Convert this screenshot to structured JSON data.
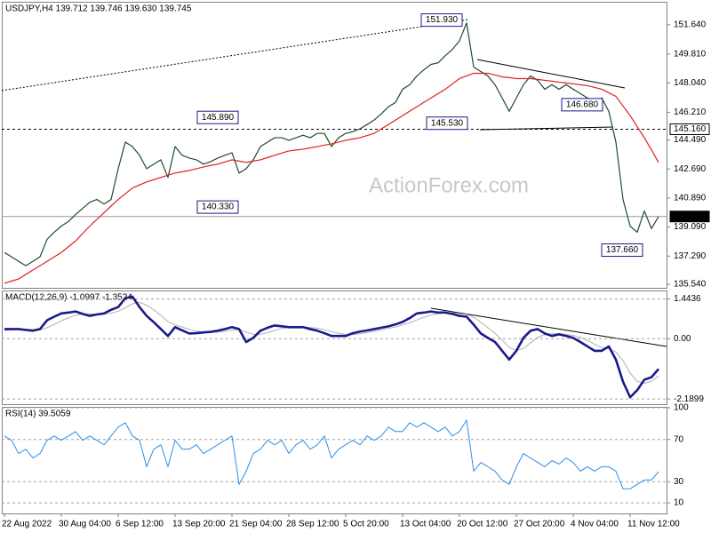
{
  "chart_data": [
    {
      "type": "line",
      "title": "USDJPY,H4  139.712 139.746 139.630 139.745",
      "watermark": "ActionForex.com",
      "ylim": [
        135.32,
        153.01
      ],
      "yticks": [
        {
          "value": 151.64,
          "label": "151.640"
        },
        {
          "value": 149.81,
          "label": "149.810"
        },
        {
          "value": 148.04,
          "label": "148.040"
        },
        {
          "value": 146.21,
          "label": "146.210"
        },
        {
          "value": 144.49,
          "label": "144.490"
        },
        {
          "value": 142.69,
          "label": "142.690"
        },
        {
          "value": 140.89,
          "label": "140.890"
        },
        {
          "value": 139.09,
          "label": "139.090"
        },
        {
          "value": 137.29,
          "label": "137.290"
        },
        {
          "value": 135.54,
          "label": "135.540"
        }
      ],
      "levels": [
        {
          "value": 145.16,
          "label": "145.160"
        },
        {
          "value": 139.745,
          "label": "139.745"
        }
      ],
      "annotations": [
        {
          "value": 151.93,
          "label": "151.930"
        },
        {
          "value": 145.89,
          "label": "145.890"
        },
        {
          "value": 140.33,
          "label": "140.330"
        },
        {
          "value": 145.53,
          "label": "145.530"
        },
        {
          "value": 146.68,
          "label": "146.680"
        },
        {
          "value": 137.66,
          "label": "137.660"
        }
      ],
      "grid": false,
      "series": [
        {
          "color": "#1e4d2b",
          "width": 1.2,
          "values": [
            137.51,
            137.24,
            136.96,
            136.69,
            136.96,
            137.24,
            138.33,
            138.77,
            139.15,
            139.43,
            139.87,
            140.25,
            140.63,
            140.8,
            140.52,
            140.8,
            142.71,
            144.36,
            144.08,
            143.54,
            142.71,
            142.99,
            143.26,
            142.17,
            144.08,
            143.54,
            143.37,
            143.26,
            142.99,
            143.15,
            143.37,
            143.54,
            143.7,
            142.44,
            142.71,
            143.26,
            144.08,
            144.36,
            144.63,
            144.63,
            144.47,
            144.63,
            144.79,
            144.63,
            144.9,
            144.9,
            144.08,
            144.63,
            144.9,
            145.01,
            145.18,
            145.45,
            145.73,
            146.11,
            146.55,
            146.82,
            147.64,
            147.92,
            148.46,
            148.85,
            149.18,
            149.28,
            149.72,
            150.11,
            150.65,
            151.75,
            149.01,
            148.74,
            148.46,
            147.92,
            147.1,
            146.27,
            147.1,
            147.92,
            148.46,
            148.19,
            147.64,
            147.92,
            147.64,
            147.92,
            147.64,
            147.37,
            147.1,
            146.82,
            147.1,
            146.27,
            144.36,
            140.8,
            139.15,
            138.77,
            140.09,
            138.99,
            139.745
          ]
        },
        {
          "color": "#e02020",
          "width": 1.2,
          "values": [
            135.6,
            135.74,
            135.87,
            136.15,
            136.42,
            136.69,
            136.96,
            137.24,
            137.51,
            137.87,
            138.22,
            138.69,
            139.15,
            139.57,
            139.98,
            140.39,
            140.8,
            141.16,
            141.51,
            141.7,
            141.89,
            142.03,
            142.17,
            142.31,
            142.44,
            142.52,
            142.6,
            142.71,
            142.82,
            142.91,
            142.99,
            143.13,
            143.26,
            143.18,
            143.1,
            143.18,
            143.26,
            143.4,
            143.54,
            143.68,
            143.81,
            143.87,
            143.92,
            144.0,
            144.08,
            144.17,
            144.25,
            144.36,
            144.47,
            144.55,
            144.63,
            144.77,
            144.9,
            145.18,
            145.45,
            145.73,
            146.0,
            146.28,
            146.55,
            146.83,
            147.1,
            147.37,
            147.64,
            147.97,
            148.3,
            148.47,
            148.63,
            148.63,
            148.63,
            148.52,
            148.41,
            148.36,
            148.3,
            148.3,
            148.3,
            148.25,
            148.19,
            148.14,
            148.08,
            148.03,
            147.97,
            147.92,
            147.86,
            147.75,
            147.64,
            147.42,
            147.2,
            146.6,
            146.0,
            145.32,
            144.63,
            143.87,
            143.1
          ]
        }
      ]
    },
    {
      "type": "line",
      "title": "MACD(12,26,9) -1.0997 -1.3524",
      "ylim": [
        -2.38,
        1.72
      ],
      "yticks": [
        1.4436,
        {
          "value": 0,
          "label": "0.00"
        },
        -2.1899
      ],
      "grid": true,
      "series": [
        {
          "color": "#b0b0b0",
          "width": 1,
          "values": [
            0.3,
            0.32,
            0.33,
            0.34,
            0.33,
            0.32,
            0.4,
            0.52,
            0.65,
            0.76,
            0.85,
            0.9,
            0.9,
            0.89,
            0.89,
            0.93,
            1.0,
            1.12,
            1.27,
            1.32,
            1.22,
            1.05,
            0.85,
            0.62,
            0.5,
            0.42,
            0.34,
            0.28,
            0.24,
            0.23,
            0.24,
            0.27,
            0.31,
            0.34,
            0.24,
            0.16,
            0.16,
            0.22,
            0.3,
            0.37,
            0.41,
            0.42,
            0.43,
            0.41,
            0.38,
            0.33,
            0.26,
            0.2,
            0.15,
            0.15,
            0.18,
            0.22,
            0.27,
            0.32,
            0.37,
            0.43,
            0.5,
            0.58,
            0.68,
            0.78,
            0.86,
            0.91,
            0.94,
            0.94,
            0.91,
            0.88,
            0.78,
            0.6,
            0.4,
            0.2,
            -0.05,
            -0.32,
            -0.43,
            -0.35,
            -0.15,
            0.05,
            0.15,
            0.18,
            0.18,
            0.15,
            0.12,
            0.05,
            -0.06,
            -0.2,
            -0.32,
            -0.37,
            -0.48,
            -0.8,
            -1.25,
            -1.55,
            -1.62,
            -1.55,
            -1.3524
          ]
        },
        {
          "color": "#1a1a8a",
          "width": 2.6,
          "values": [
            0.35,
            0.35,
            0.35,
            0.32,
            0.29,
            0.35,
            0.67,
            0.8,
            0.92,
            0.95,
            0.99,
            0.9,
            0.83,
            0.88,
            0.92,
            1.05,
            1.15,
            1.47,
            1.53,
            1.15,
            0.83,
            0.6,
            0.35,
            0.1,
            0.42,
            0.3,
            0.19,
            0.2,
            0.23,
            0.25,
            0.29,
            0.35,
            0.42,
            0.35,
            -0.12,
            0.03,
            0.29,
            0.4,
            0.48,
            0.45,
            0.42,
            0.42,
            0.42,
            0.35,
            0.29,
            0.2,
            0.1,
            0.1,
            0.1,
            0.2,
            0.26,
            0.3,
            0.35,
            0.4,
            0.45,
            0.52,
            0.61,
            0.75,
            0.92,
            0.95,
            0.99,
            0.95,
            0.95,
            0.9,
            0.83,
            0.8,
            0.51,
            0.19,
            0.03,
            -0.12,
            -0.44,
            -0.76,
            -0.44,
            0.03,
            0.29,
            0.35,
            0.19,
            0.1,
            0.16,
            0.1,
            0.03,
            -0.12,
            -0.28,
            -0.44,
            -0.44,
            -0.28,
            -0.76,
            -1.56,
            -2.13,
            -1.87,
            -1.49,
            -1.4,
            -1.0997
          ]
        }
      ]
    },
    {
      "type": "line",
      "title": "RSI(14) 39.5059",
      "ylim": [
        0,
        100
      ],
      "yticks": [
        100,
        70,
        30,
        10
      ],
      "grid": true,
      "categories": [
        "22 Aug 2022",
        null,
        null,
        null,
        null,
        null,
        null,
        null,
        "30 Aug 04:00",
        null,
        null,
        null,
        null,
        null,
        null,
        null,
        "6 Sep 12:00",
        null,
        null,
        null,
        null,
        null,
        null,
        null,
        "13 Sep 20:00",
        null,
        null,
        null,
        null,
        null,
        null,
        null,
        "21 Sep 04:00",
        null,
        null,
        null,
        null,
        null,
        null,
        null,
        "28 Sep 12:00",
        null,
        null,
        null,
        null,
        null,
        null,
        null,
        "5 Oct 20:00",
        null,
        null,
        null,
        null,
        null,
        null,
        null,
        "13 Oct 04:00",
        null,
        null,
        null,
        null,
        null,
        null,
        null,
        "20 Oct 12:00",
        null,
        null,
        null,
        null,
        null,
        null,
        null,
        "27 Oct 20:00",
        null,
        null,
        null,
        null,
        null,
        null,
        null,
        "4 Nov 04:00",
        null,
        null,
        null,
        null,
        null,
        null,
        null,
        "11 Nov 12:00",
        null,
        null,
        null,
        null
      ],
      "series": [
        {
          "color": "#2f8ee8",
          "width": 1,
          "values": [
            73.3,
            69.2,
            56.7,
            60.8,
            52.5,
            56.7,
            69.2,
            73.3,
            69.2,
            73.3,
            77.5,
            69.2,
            73.3,
            69.2,
            65,
            73.3,
            81.7,
            85.8,
            73.3,
            69.2,
            44.2,
            60.8,
            65,
            44.2,
            69.2,
            60.8,
            60.8,
            65,
            56.7,
            60.8,
            65,
            69.2,
            73.3,
            27.5,
            40,
            56.7,
            60.8,
            69.2,
            65,
            69.2,
            56.7,
            65,
            69.2,
            60.8,
            65,
            73.3,
            52.5,
            60.8,
            65,
            69.2,
            65,
            73.3,
            69.2,
            73.3,
            81.7,
            77.5,
            77.5,
            85.8,
            81.7,
            85.8,
            81.7,
            77.5,
            81.7,
            73.3,
            77.5,
            88.3,
            40,
            48.3,
            44.2,
            40,
            31.7,
            27.5,
            44.2,
            56.7,
            52.5,
            48.3,
            44.2,
            50,
            46.7,
            52.5,
            48.3,
            40,
            44.2,
            40,
            44.2,
            44.2,
            40,
            23.3,
            23.3,
            27.5,
            31.7,
            31.7,
            39.5059
          ]
        }
      ]
    }
  ]
}
